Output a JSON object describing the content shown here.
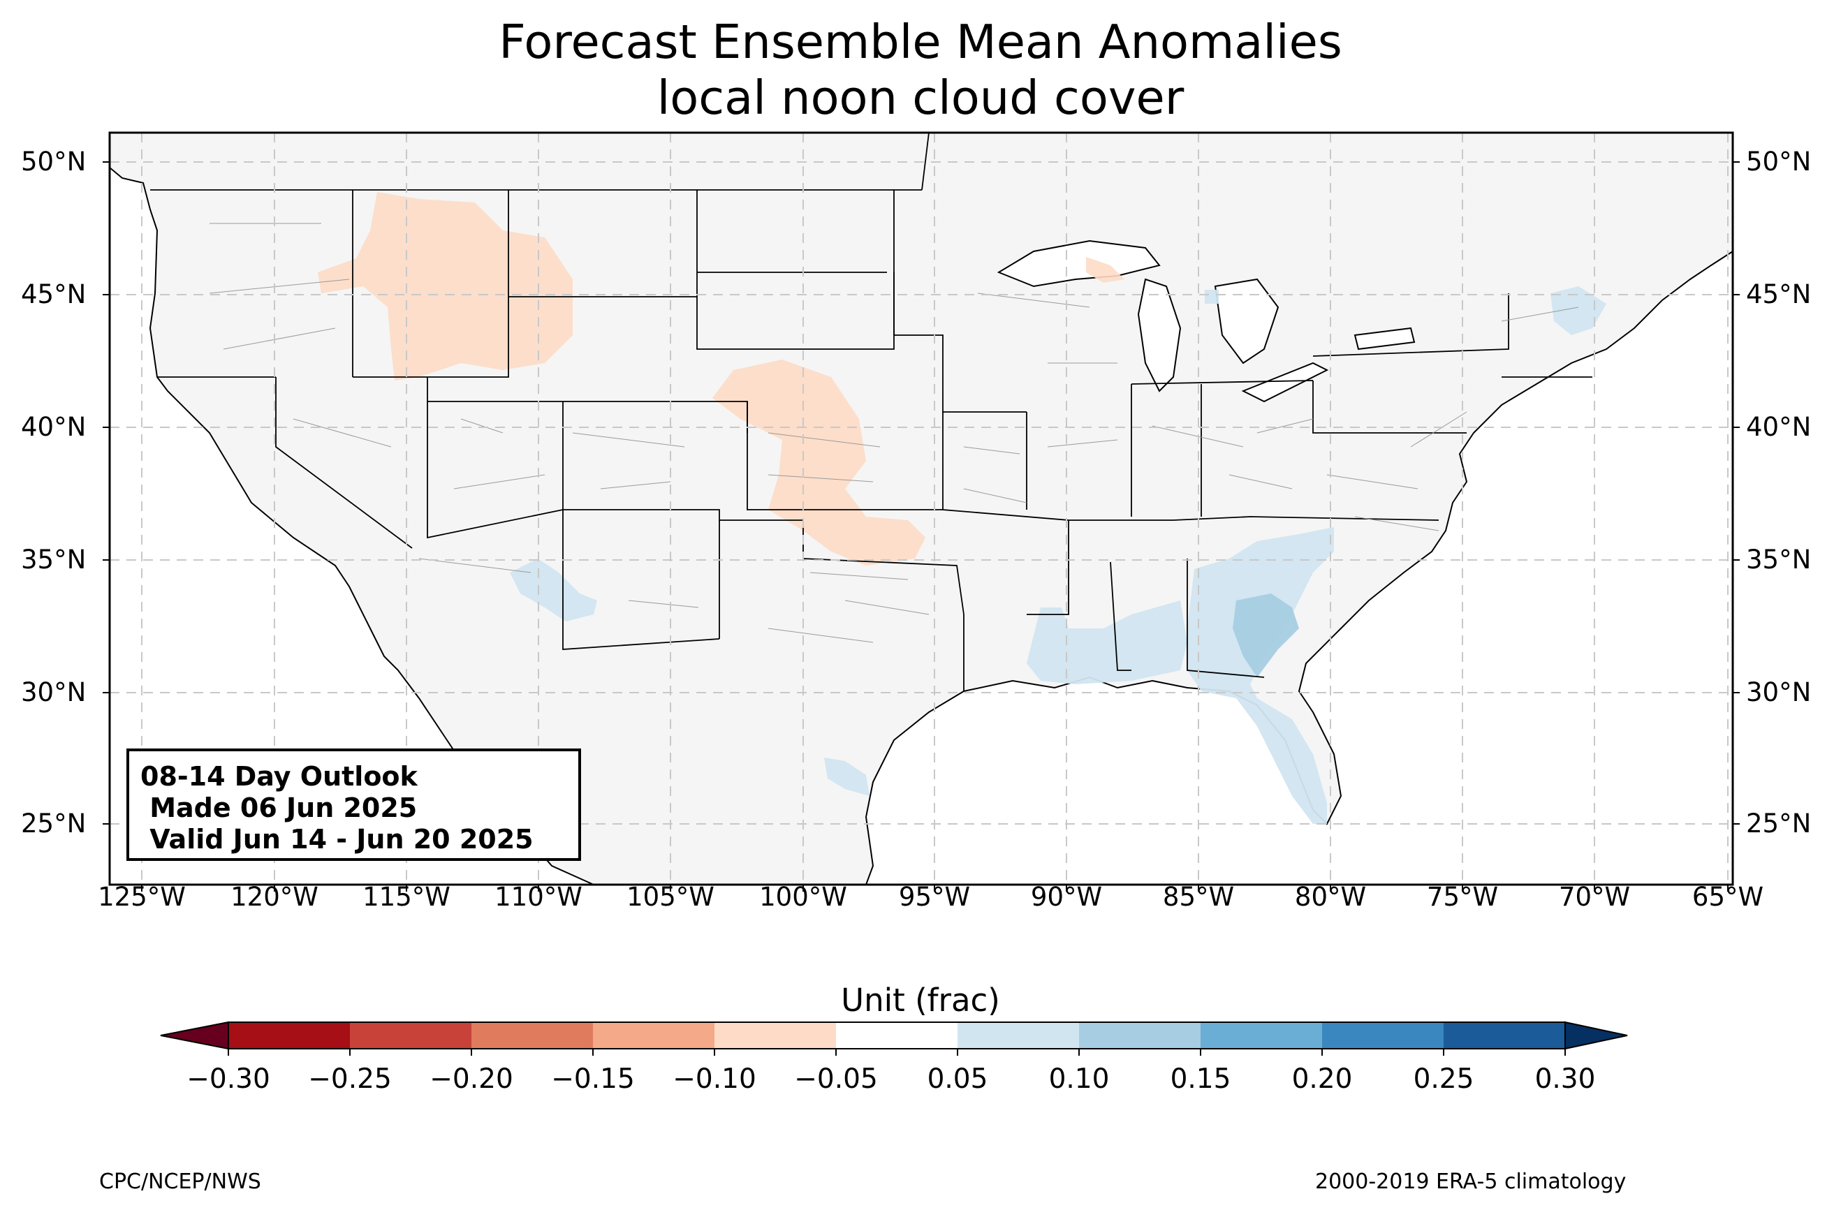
{
  "title": {
    "line1": "Forecast Ensemble Mean Anomalies",
    "line2": "local noon cloud cover"
  },
  "map": {
    "lon_range": [
      -125,
      -65
    ],
    "lat_range": [
      23,
      51
    ],
    "lat_ticks": [
      "50°N",
      "45°N",
      "40°N",
      "35°N",
      "30°N",
      "25°N"
    ],
    "lon_ticks": [
      "125°W",
      "120°W",
      "115°W",
      "110°W",
      "105°W",
      "100°W",
      "95°W",
      "90°W",
      "85°W",
      "80°W",
      "75°W",
      "70°W",
      "65°W"
    ],
    "land_color": "#f5f5f5",
    "grid": true,
    "anomaly_regions": [
      {
        "area": "northern Rockies / Montana-Wyoming",
        "range": "-0.10 to -0.05",
        "color": "#fddbc7"
      },
      {
        "area": "central Plains / Nebraska-Kansas",
        "range": "-0.10 to -0.05",
        "color": "#fddbc7"
      },
      {
        "area": "upper Michigan",
        "range": "-0.10 to -0.05",
        "color": "#fddbc7"
      },
      {
        "area": "Georgia / South Carolina",
        "range": "0.05 to 0.15",
        "color": "#d1e5f0"
      },
      {
        "area": "Florida peninsula",
        "range": "0.05 to 0.10",
        "color": "#d1e5f0"
      },
      {
        "area": "Gulf coast",
        "range": "0.05 to 0.10",
        "color": "#d1e5f0"
      },
      {
        "area": "Arizona",
        "range": "0.05 to 0.10",
        "color": "#d1e5f0"
      },
      {
        "area": "south Texas coast",
        "range": "0.05 to 0.10",
        "color": "#d1e5f0"
      },
      {
        "area": "northern New England",
        "range": "0.05 to 0.10",
        "color": "#d1e5f0"
      }
    ]
  },
  "info_box": {
    "line1": "08-14 Day Outlook",
    "line2": " Made 06 Jun 2025",
    "line3": " Valid Jun 14 - Jun 20 2025"
  },
  "colorbar": {
    "title": "Unit (frac)",
    "ticks": [
      "−0.30",
      "−0.25",
      "−0.20",
      "−0.15",
      "−0.10",
      "−0.05",
      "0.05",
      "0.10",
      "0.15",
      "0.20",
      "0.25",
      "0.30"
    ],
    "under_color": "#67001f",
    "over_color": "#053061",
    "colors": [
      "#a50f15",
      "#c8423a",
      "#e07b5e",
      "#f4a988",
      "#fddbc7",
      "#ffffff",
      "#d1e5f0",
      "#a6cde2",
      "#6aaed6",
      "#3a87c0",
      "#1c5b9a"
    ]
  },
  "footer": {
    "left": "CPC/NCEP/NWS",
    "right": "2000-2019 ERA-5 climatology"
  }
}
